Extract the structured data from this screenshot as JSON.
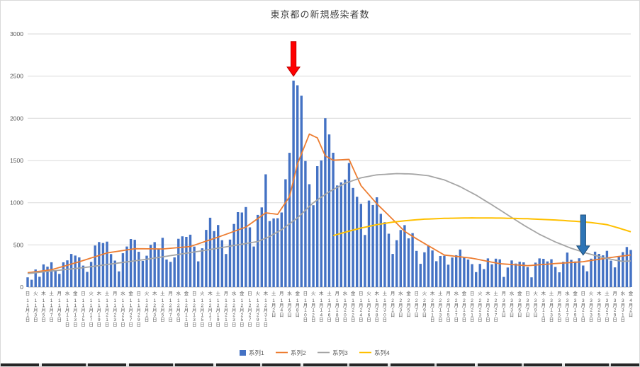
{
  "chart_data": {
    "type": "bar",
    "title": "東京都の新規感染者数",
    "background": "#FFFFFF",
    "grid": true,
    "legend_position": "bottom",
    "ylim": [
      0,
      3000
    ],
    "yticks": [
      0,
      500,
      1000,
      1500,
      2000,
      2500,
      3000
    ],
    "x_label_every": 2,
    "weekday_cycle": [
      "日",
      "月",
      "火",
      "水",
      "木",
      "金",
      "土"
    ],
    "categories": [
      "11月1日",
      "11月2日",
      "11月3日",
      "11月4日",
      "11月5日",
      "11月6日",
      "11月7日",
      "11月8日",
      "11月9日",
      "11月10日",
      "11月11日",
      "11月12日",
      "11月13日",
      "11月14日",
      "11月15日",
      "11月16日",
      "11月17日",
      "11月18日",
      "11月19日",
      "11月20日",
      "11月21日",
      "11月22日",
      "11月23日",
      "11月24日",
      "11月25日",
      "11月26日",
      "11月27日",
      "11月28日",
      "11月29日",
      "11月30日",
      "12月1日",
      "12月2日",
      "12月3日",
      "12月4日",
      "12月5日",
      "12月6日",
      "12月7日",
      "12月8日",
      "12月9日",
      "12月10日",
      "12月11日",
      "12月12日",
      "12月13日",
      "12月14日",
      "12月15日",
      "12月16日",
      "12月17日",
      "12月18日",
      "12月19日",
      "12月20日",
      "12月21日",
      "12月22日",
      "12月23日",
      "12月24日",
      "12月25日",
      "12月26日",
      "12月27日",
      "12月28日",
      "12月29日",
      "12月30日",
      "12月31日",
      "1月1日",
      "1月2日",
      "1月3日",
      "1月4日",
      "1月5日",
      "1月6日",
      "1月7日",
      "1月8日",
      "1月9日",
      "1月10日",
      "1月11日",
      "1月12日",
      "1月13日",
      "1月14日",
      "1月15日",
      "1月16日",
      "1月17日",
      "1月18日",
      "1月19日",
      "1月20日",
      "1月21日",
      "1月22日",
      "1月23日",
      "1月24日",
      "1月25日",
      "1月26日",
      "1月27日",
      "1月28日",
      "1月29日",
      "1月30日",
      "1月31日",
      "2月1日",
      "2月2日",
      "2月3日",
      "2月4日",
      "2月5日",
      "2月6日",
      "2月7日",
      "2月8日",
      "2月9日",
      "2月10日",
      "2月11日",
      "2月12日",
      "2月13日",
      "2月14日",
      "2月15日",
      "2月16日",
      "2月17日",
      "2月18日",
      "2月19日",
      "2月20日",
      "2月21日",
      "2月22日",
      "2月23日",
      "2月24日",
      "2月25日",
      "2月26日",
      "2月27日",
      "2月28日",
      "3月1日",
      "3月2日",
      "3月3日",
      "3月4日",
      "3月5日",
      "3月6日",
      "3月7日",
      "3月8日",
      "3月9日",
      "3月10日",
      "3月11日",
      "3月12日",
      "3月13日",
      "3月14日",
      "3月15日",
      "3月16日",
      "3月17日",
      "3月18日",
      "3月19日",
      "3月20日",
      "3月21日",
      "3月22日",
      "3月23日",
      "3月24日",
      "3月25日",
      "3月26日",
      "3月27日",
      "3月28日",
      "3月29日",
      "3月30日",
      "3月31日",
      "4月1日",
      "4月2日"
    ],
    "series": [
      {
        "name": "系列1",
        "type": "bar",
        "color": "#4472C4",
        "values": [
          116,
          87,
          209,
          122,
          269,
          242,
          294,
          189,
          157,
          293,
          317,
          393,
          374,
          352,
          255,
          180,
          298,
          493,
          534,
          522,
          539,
          391,
          314,
          186,
          401,
          481,
          570,
          561,
          418,
          311,
          372,
          500,
          533,
          449,
          584,
          327,
          299,
          352,
          572,
          602,
          595,
          621,
          480,
          305,
          460,
          678,
          822,
          664,
          736,
          556,
          392,
          563,
          748,
          888,
          884,
          949,
          708,
          481,
          856,
          944,
          1337,
          783,
          814,
          816,
          884,
          1278,
          1591,
          2447,
          2392,
          2268,
          1494,
          1219,
          970,
          1433,
          1502,
          2001,
          1809,
          1592,
          1204,
          1240,
          1274,
          1471,
          1175,
          1070,
          986,
          618,
          1026,
          973,
          1064,
          868,
          769,
          633,
          393,
          556,
          676,
          734,
          577,
          639,
          429,
          276,
          412,
          491,
          434,
          307,
          369,
          371,
          266,
          350,
          378,
          445,
          353,
          327,
          272,
          178,
          275,
          213,
          340,
          270,
          337,
          329,
          121,
          232,
          316,
          279,
          301,
          293,
          237,
          116,
          290,
          340,
          335,
          304,
          330,
          239,
          175,
          300,
          409,
          323,
          303,
          342,
          256,
          187,
          337,
          420,
          394,
          376,
          430,
          313,
          234,
          364,
          414,
          475,
          440
        ]
      },
      {
        "name": "系列2",
        "type": "line",
        "color": "#ED7D31",
        "points": [
          [
            0,
            170
          ],
          [
            6,
            205
          ],
          [
            13,
            300
          ],
          [
            20,
            405
          ],
          [
            27,
            455
          ],
          [
            34,
            452
          ],
          [
            41,
            481
          ],
          [
            48,
            592
          ],
          [
            55,
            711
          ],
          [
            60,
            880
          ],
          [
            63,
            862
          ],
          [
            66,
            1072
          ],
          [
            68,
            1460
          ],
          [
            71,
            1813
          ],
          [
            73,
            1769
          ],
          [
            75,
            1555
          ],
          [
            77,
            1504
          ],
          [
            81,
            1513
          ],
          [
            84,
            1203
          ],
          [
            88,
            987
          ],
          [
            91,
            850
          ],
          [
            95,
            661
          ],
          [
            98,
            572
          ],
          [
            105,
            380
          ],
          [
            112,
            342
          ],
          [
            119,
            277
          ],
          [
            126,
            254
          ],
          [
            133,
            279
          ],
          [
            140,
            301
          ],
          [
            147,
            351
          ],
          [
            152,
            381
          ]
        ]
      },
      {
        "name": "系列3",
        "type": "line",
        "color": "#A5A5A5",
        "points": [
          [
            0,
            160
          ],
          [
            14,
            230
          ],
          [
            30,
            330
          ],
          [
            44,
            430
          ],
          [
            58,
            540
          ],
          [
            61,
            600
          ],
          [
            64,
            680
          ],
          [
            68,
            820
          ],
          [
            72,
            1000
          ],
          [
            76,
            1130
          ],
          [
            80,
            1230
          ],
          [
            84,
            1295
          ],
          [
            88,
            1330
          ],
          [
            93,
            1345
          ],
          [
            97,
            1340
          ],
          [
            101,
            1320
          ],
          [
            105,
            1270
          ],
          [
            109,
            1190
          ],
          [
            113,
            1090
          ],
          [
            117,
            975
          ],
          [
            121,
            855
          ],
          [
            125,
            735
          ],
          [
            129,
            625
          ],
          [
            133,
            535
          ],
          [
            137,
            460
          ],
          [
            141,
            400
          ],
          [
            145,
            350
          ],
          [
            148,
            320
          ],
          [
            150,
            305
          ],
          [
            152,
            310
          ]
        ]
      },
      {
        "name": "系列4",
        "type": "line",
        "color": "#FFC000",
        "points": [
          [
            77,
            610
          ],
          [
            80,
            650
          ],
          [
            84,
            700
          ],
          [
            88,
            740
          ],
          [
            92,
            770
          ],
          [
            96,
            790
          ],
          [
            100,
            805
          ],
          [
            105,
            815
          ],
          [
            112,
            820
          ],
          [
            119,
            818
          ],
          [
            126,
            810
          ],
          [
            133,
            795
          ],
          [
            138,
            780
          ],
          [
            142,
            765
          ],
          [
            146,
            740
          ],
          [
            149,
            700
          ],
          [
            152,
            655
          ]
        ]
      }
    ],
    "annotations": [
      {
        "name": "red-down-arrow",
        "shape": "down-arrow",
        "color": "#FF0000",
        "border": "#C00000",
        "day": 67,
        "from_value": 2910,
        "to_value": 2500
      },
      {
        "name": "blue-down-arrow",
        "shape": "down-arrow",
        "color": "#2E75B6",
        "border": "#1F4E79",
        "day": 140,
        "from_value": 855,
        "to_value": 380
      }
    ]
  }
}
